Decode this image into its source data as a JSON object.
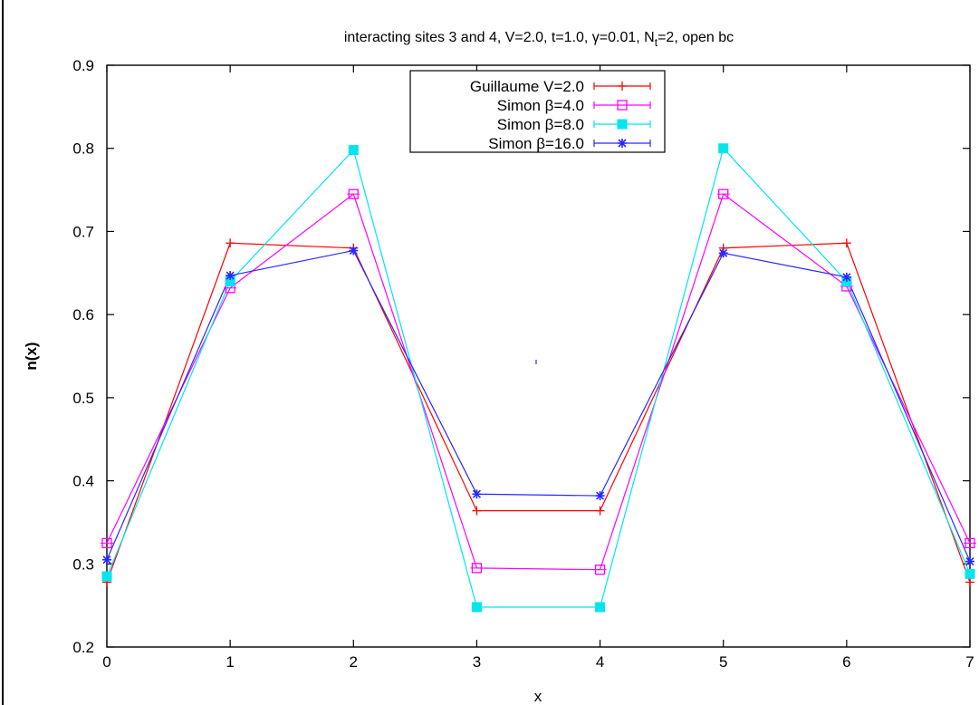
{
  "chart_data": {
    "type": "line",
    "title": "interacting sites 3 and 4, V=2.0, t=1.0, γ=0.01, N",
    "title_subscript": "t",
    "title_suffix": "=2, open bc",
    "xlabel": "x",
    "ylabel": "n(x)",
    "xlim": [
      0,
      7
    ],
    "ylim": [
      0.2,
      0.9
    ],
    "x_ticks": [
      "0",
      "1",
      "2",
      "3",
      "4",
      "5",
      "6",
      "7"
    ],
    "y_ticks": [
      "0.2",
      "0.3",
      "0.4",
      "0.5",
      "0.6",
      "0.7",
      "0.8",
      "0.9"
    ],
    "grid": false,
    "legend_position": "top-center",
    "x": [
      0,
      1,
      2,
      3,
      4,
      5,
      6,
      7
    ],
    "series": [
      {
        "name": "Guillaume V=2.0",
        "color": "#ff0000",
        "marker": "plus",
        "values": [
          0.278,
          0.686,
          0.68,
          0.364,
          0.364,
          0.68,
          0.686,
          0.278
        ]
      },
      {
        "name": "Simon β=4.0",
        "color": "#ff00ff",
        "marker": "open-square",
        "values": [
          0.325,
          0.632,
          0.745,
          0.295,
          0.293,
          0.745,
          0.634,
          0.325
        ]
      },
      {
        "name": "Simon β=8.0",
        "color": "#00e5ee",
        "marker": "filled-square",
        "values": [
          0.285,
          0.64,
          0.798,
          0.248,
          0.248,
          0.8,
          0.64,
          0.288
        ]
      },
      {
        "name": "Simon β=16.0",
        "color": "#2828ff",
        "marker": "star",
        "values": [
          0.305,
          0.647,
          0.677,
          0.384,
          0.382,
          0.674,
          0.645,
          0.303
        ]
      }
    ]
  }
}
